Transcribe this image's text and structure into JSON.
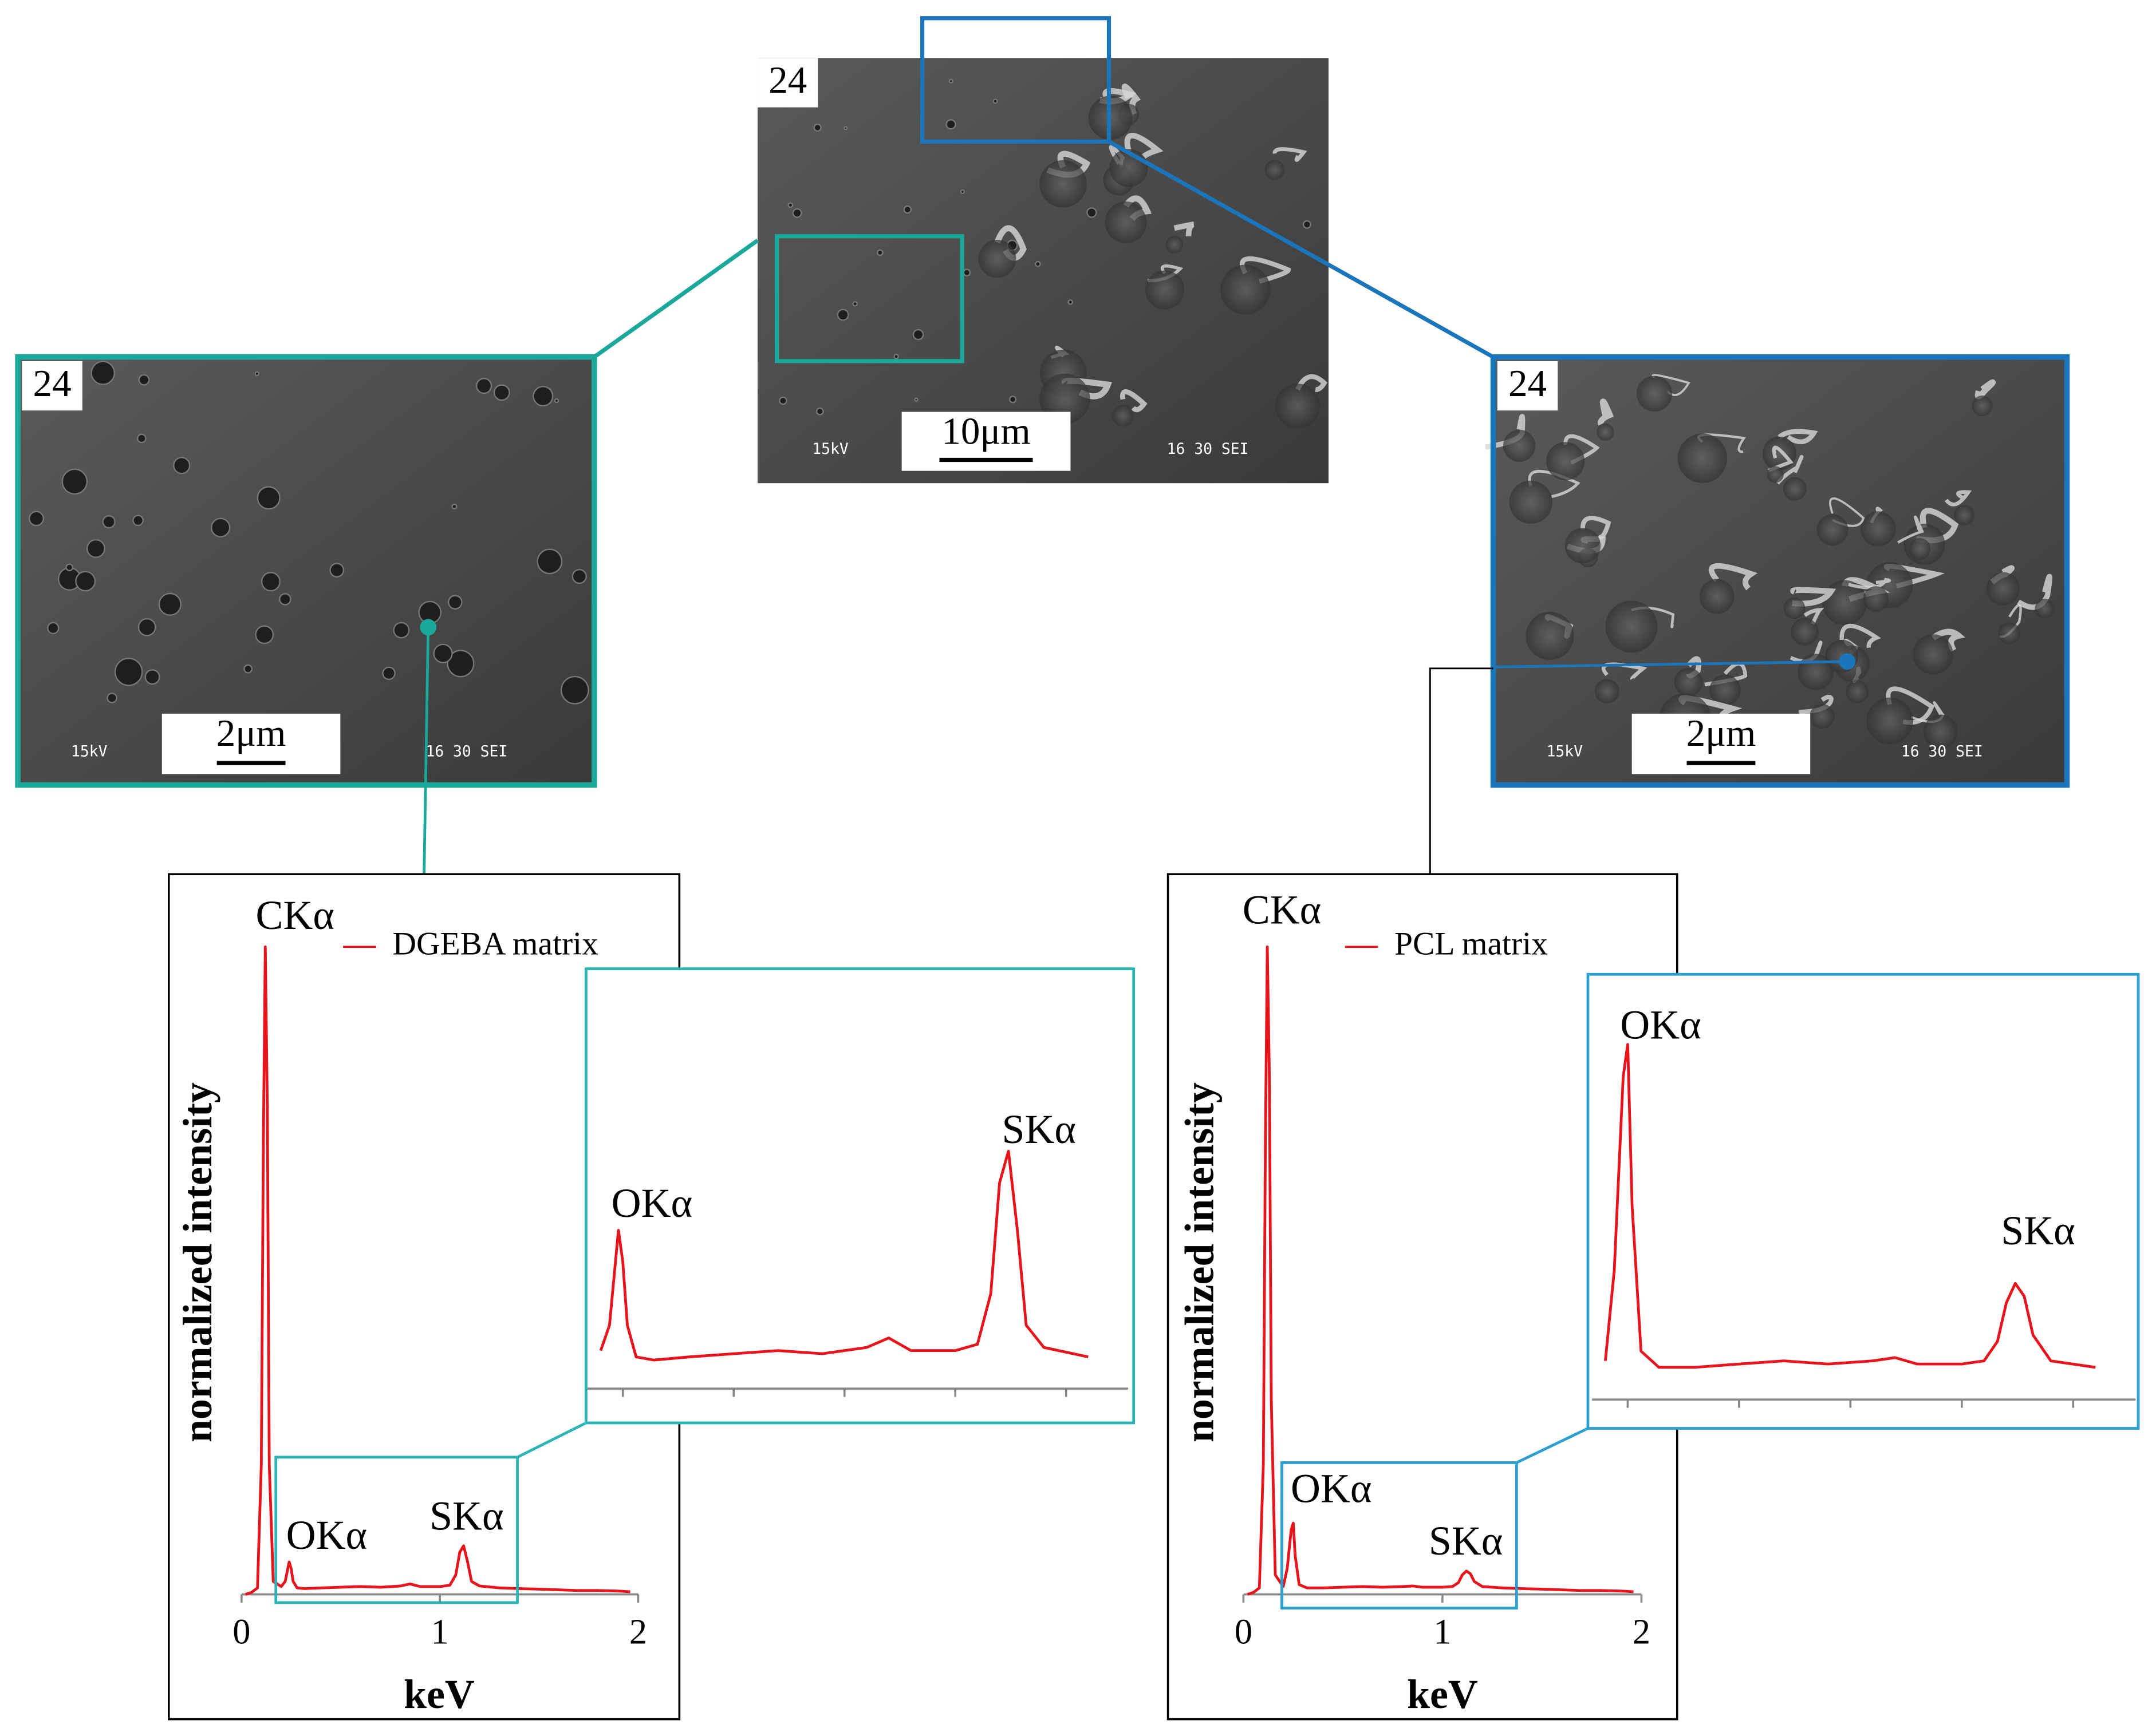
{
  "images": [
    {
      "label": "24",
      "scale_bar": "10μm",
      "voltage": "15kV",
      "info": "16 30 SEI"
    },
    {
      "label": "24",
      "scale_bar": "2μm",
      "voltage": "15kV",
      "info": "16 30 SEI"
    },
    {
      "label": "24",
      "scale_bar": "2μm",
      "voltage": "15kV",
      "info": "16 30 SEI"
    }
  ],
  "chart_data": [
    {
      "type": "line",
      "xlabel": "keV",
      "ylabel": "normalized intensity",
      "annotations": [
        "CKα",
        "OKα",
        "SKα"
      ],
      "x": [
        0.02,
        0.05,
        0.08,
        0.1,
        0.11,
        0.12,
        0.13,
        0.14,
        0.16,
        0.2,
        0.22,
        0.24,
        0.25,
        0.26,
        0.28,
        0.32,
        0.4,
        0.5,
        0.6,
        0.7,
        0.8,
        0.85,
        0.9,
        1.0,
        1.05,
        1.08,
        1.1,
        1.12,
        1.14,
        1.16,
        1.2,
        1.3,
        1.4,
        1.5,
        1.6,
        1.7,
        1.8,
        1.9,
        1.96
      ],
      "series": [
        {
          "name": "DGEBA matrix",
          "color": "#e8141c",
          "values": [
            0,
            0.003,
            0.01,
            0.2,
            0.7,
            1.0,
            0.75,
            0.2,
            0.02,
            0.012,
            0.02,
            0.05,
            0.04,
            0.02,
            0.01,
            0.009,
            0.01,
            0.011,
            0.012,
            0.011,
            0.013,
            0.016,
            0.012,
            0.012,
            0.014,
            0.03,
            0.065,
            0.075,
            0.05,
            0.02,
            0.013,
            0.01,
            0.009,
            0.008,
            0.007,
            0.006,
            0.006,
            0.005,
            0.004
          ]
        }
      ],
      "xlim": [
        0,
        2
      ],
      "xticks": [
        0,
        1,
        2
      ],
      "ylim": [
        0,
        1
      ],
      "inset": {
        "xlim": [
          0.17,
          1.39
        ],
        "ylim": [
          0,
          0.13
        ],
        "xticks": [
          0.25,
          0.5,
          0.75,
          1,
          1.25
        ],
        "color": "#2bb5b5"
      }
    },
    {
      "type": "line",
      "xlabel": "keV",
      "ylabel": "normalized intensity",
      "annotations": [
        "CKα",
        "OKα",
        "SKα"
      ],
      "x": [
        0.02,
        0.05,
        0.08,
        0.1,
        0.11,
        0.12,
        0.13,
        0.14,
        0.16,
        0.2,
        0.22,
        0.24,
        0.25,
        0.26,
        0.28,
        0.32,
        0.4,
        0.5,
        0.6,
        0.7,
        0.8,
        0.85,
        0.9,
        1.0,
        1.05,
        1.08,
        1.1,
        1.12,
        1.14,
        1.16,
        1.2,
        1.3,
        1.4,
        1.5,
        1.6,
        1.7,
        1.8,
        1.9,
        1.96
      ],
      "series": [
        {
          "name": "PCL matrix",
          "color": "#e8141c",
          "values": [
            0,
            0.003,
            0.01,
            0.2,
            0.7,
            1.0,
            0.8,
            0.3,
            0.03,
            0.012,
            0.04,
            0.1,
            0.11,
            0.06,
            0.015,
            0.01,
            0.01,
            0.011,
            0.012,
            0.011,
            0.012,
            0.013,
            0.011,
            0.011,
            0.012,
            0.018,
            0.03,
            0.036,
            0.032,
            0.02,
            0.012,
            0.01,
            0.009,
            0.008,
            0.007,
            0.006,
            0.006,
            0.005,
            0.004
          ]
        }
      ],
      "xlim": [
        0,
        2
      ],
      "xticks": [
        0,
        1,
        2
      ],
      "ylim": [
        0,
        1
      ],
      "inset": {
        "xlim": [
          0.17,
          1.39
        ],
        "ylim": [
          0,
          0.13
        ],
        "xticks": [
          0.25,
          0.5,
          0.75,
          1,
          1.25
        ],
        "color": "#2a9fd0"
      }
    }
  ]
}
